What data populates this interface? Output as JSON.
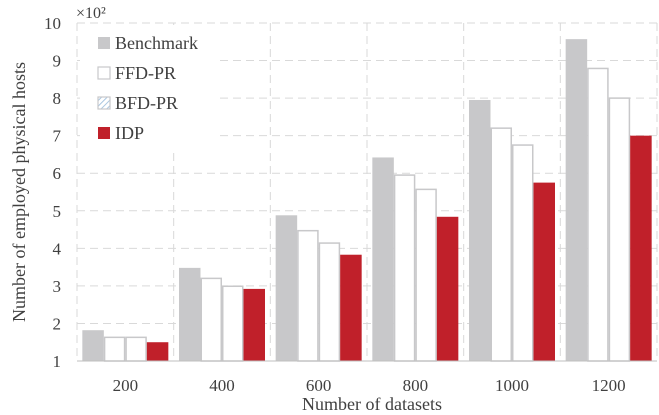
{
  "chart_data": {
    "type": "bar",
    "multiplier_label": "×10²",
    "xlabel": "Number of datasets",
    "ylabel": "Number of employed physical hosts",
    "ylim": [
      1,
      10
    ],
    "yticks": [
      "1",
      "2",
      "3",
      "4",
      "5",
      "6",
      "7",
      "8",
      "9",
      "10"
    ],
    "categories": [
      "200",
      "400",
      "600",
      "800",
      "1000",
      "1200"
    ],
    "grid": true,
    "legend_position": "top-left",
    "series": [
      {
        "name": "Benchmark",
        "values": [
          1.82,
          3.48,
          4.88,
          6.42,
          7.95,
          9.57
        ],
        "color": "#c8c8ca",
        "style": "filled"
      },
      {
        "name": "FFD-PR",
        "values": [
          1.65,
          3.22,
          4.49,
          5.97,
          7.22,
          8.81
        ],
        "color": "#c8c8ca",
        "style": "outline"
      },
      {
        "name": "BFD-PR",
        "values": [
          1.65,
          3.01,
          4.16,
          5.59,
          6.77,
          8.02
        ],
        "color": "#c8c8ca",
        "style": "outline-hatched"
      },
      {
        "name": "IDP",
        "values": [
          1.5,
          2.92,
          3.83,
          4.84,
          5.75,
          7.0
        ],
        "color": "#c0202a",
        "style": "filled"
      }
    ]
  }
}
